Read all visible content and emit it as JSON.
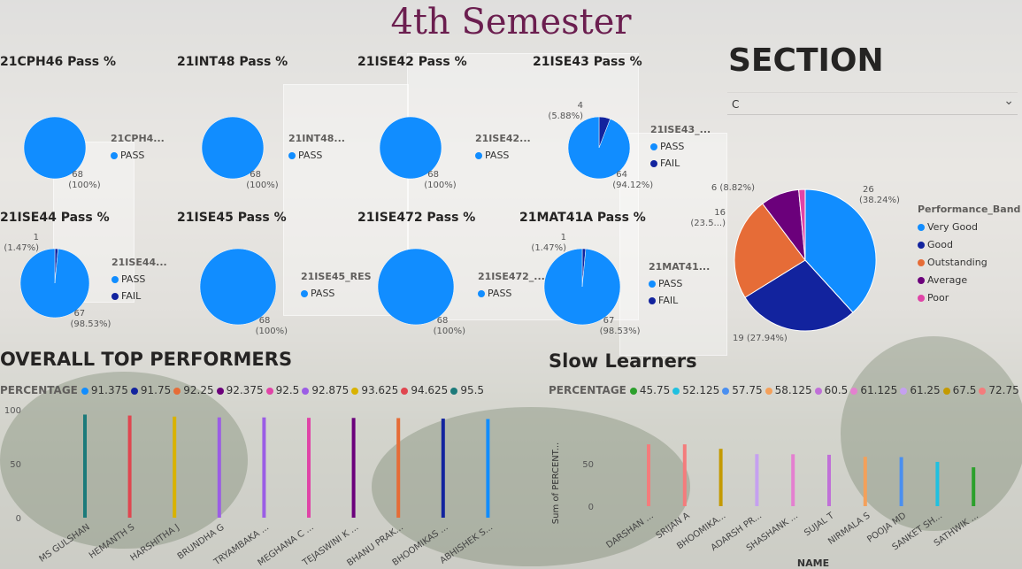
{
  "page": {
    "title": "4th Semester"
  },
  "section_slicer": {
    "title": "SECTION",
    "selected": "C"
  },
  "colors": {
    "pass": "#118dff",
    "fail": "#12239e"
  },
  "chart_data": [
    {
      "type": "pie",
      "title": "21CPH46 Pass %",
      "legend_title": "21CPH4...",
      "slices": [
        {
          "label": "PASS",
          "value": 68,
          "pct": "100%"
        }
      ]
    },
    {
      "type": "pie",
      "title": "21INT48 Pass %",
      "legend_title": "21INT48...",
      "slices": [
        {
          "label": "PASS",
          "value": 68,
          "pct": "100%"
        }
      ]
    },
    {
      "type": "pie",
      "title": "21ISE42 Pass %",
      "legend_title": "21ISE42...",
      "slices": [
        {
          "label": "PASS",
          "value": 68,
          "pct": "100%"
        }
      ]
    },
    {
      "type": "pie",
      "title": "21ISE43 Pass %",
      "legend_title": "21ISE43_...",
      "slices": [
        {
          "label": "PASS",
          "value": 64,
          "pct": "94.12%"
        },
        {
          "label": "FAIL",
          "value": 4,
          "pct": "5.88%"
        }
      ]
    },
    {
      "type": "pie",
      "title": "21ISE44 Pass %",
      "legend_title": "21ISE44...",
      "slices": [
        {
          "label": "PASS",
          "value": 67,
          "pct": "98.53%"
        },
        {
          "label": "FAIL",
          "value": 1,
          "pct": "1.47%"
        }
      ]
    },
    {
      "type": "pie",
      "title": "21ISE45 Pass %",
      "legend_title": "21ISE45_RES",
      "slices": [
        {
          "label": "PASS",
          "value": 68,
          "pct": "100%"
        }
      ]
    },
    {
      "type": "pie",
      "title": "21ISE472 Pass %",
      "legend_title": "21ISE472_...",
      "slices": [
        {
          "label": "PASS",
          "value": 68,
          "pct": "100%"
        }
      ]
    },
    {
      "type": "pie",
      "title": "21MAT41A Pass %",
      "legend_title": "21MAT41...",
      "slices": [
        {
          "label": "PASS",
          "value": 67,
          "pct": "98.53%"
        },
        {
          "label": "FAIL",
          "value": 1,
          "pct": "1.47%"
        }
      ]
    },
    {
      "type": "pie",
      "title": "",
      "legend_title": "Performance_Band",
      "slices": [
        {
          "label": "Very Good",
          "value": 26,
          "pct": "38.24%",
          "color": "#118dff"
        },
        {
          "label": "Good",
          "value": 19,
          "pct": "27.94%",
          "color": "#12239e"
        },
        {
          "label": "Outstanding",
          "value": 16,
          "pct": "23.5...",
          "color": "#e66c37"
        },
        {
          "label": "Average",
          "value": 6,
          "pct": "8.82%",
          "color": "#6b007b"
        },
        {
          "label": "Poor",
          "value": 1,
          "pct": "",
          "color": "#e044a7"
        }
      ]
    },
    {
      "type": "bar",
      "title": "OVERALL TOP PERFORMERS",
      "legend_title": "PERCENTAGE",
      "ylim": [
        0,
        100
      ],
      "yticks": [
        0,
        50,
        100
      ],
      "categories": [
        "MS GULSHAN",
        "HEMANTH S",
        "HARSHITHA J",
        "BRUNDHA G",
        "TRYAMBAKA ...",
        "MEGHANA C ...",
        "TEJASWINI K ...",
        "BHANU PRAK...",
        "BHOOMIKAS ...",
        "ABHISHEK S..."
      ],
      "values": [
        95.5,
        94.625,
        93.625,
        92.875,
        92.875,
        92.5,
        92.375,
        92.25,
        91.75,
        91.375
      ],
      "bar_colors": [
        "#1c7a7a",
        "#e0464f",
        "#d9b200",
        "#9b5de5",
        "#9b5de5",
        "#e044a7",
        "#6b007b",
        "#e66c37",
        "#12239e",
        "#118dff"
      ],
      "legend": [
        {
          "label": "91.375",
          "color": "#118dff"
        },
        {
          "label": "91.75",
          "color": "#12239e"
        },
        {
          "label": "92.25",
          "color": "#e66c37"
        },
        {
          "label": "92.375",
          "color": "#6b007b"
        },
        {
          "label": "92.5",
          "color": "#e044a7"
        },
        {
          "label": "92.875",
          "color": "#9b5de5"
        },
        {
          "label": "93.625",
          "color": "#d9b200"
        },
        {
          "label": "94.625",
          "color": "#e0464f"
        },
        {
          "label": "95.5",
          "color": "#1c7a7a"
        }
      ]
    },
    {
      "type": "bar",
      "title": "Slow Learners",
      "legend_title": "PERCENTAGE",
      "xlabel": "NAME",
      "ylabel": "Sum of PERCENT...",
      "ylim": [
        0,
        75
      ],
      "yticks": [
        0,
        50
      ],
      "categories": [
        "DARSHAN ...",
        "SRIJAN A",
        "BHOOMIKA...",
        "ADARSH PR...",
        "SHASHANK ...",
        "SUJAL T",
        "NIRMALA S",
        "POOJA MD",
        "SANKET SH...",
        "SATHWIK ..."
      ],
      "values": [
        72.75,
        72.75,
        67.5,
        61.25,
        61.125,
        60.5,
        58.125,
        57.75,
        52.125,
        45.75
      ],
      "bar_colors": [
        "#f47c7c",
        "#f47c7c",
        "#c49a00",
        "#c5a0f0",
        "#e480d0",
        "#c070d8",
        "#f4a05a",
        "#4a8ff0",
        "#20c0e0",
        "#2ca02c"
      ],
      "legend": [
        {
          "label": "45.75",
          "color": "#2ca02c"
        },
        {
          "label": "52.125",
          "color": "#20c0e0"
        },
        {
          "label": "57.75",
          "color": "#4a8ff0"
        },
        {
          "label": "58.125",
          "color": "#f4a05a"
        },
        {
          "label": "60.5",
          "color": "#c070d8"
        },
        {
          "label": "61.125",
          "color": "#e480d0"
        },
        {
          "label": "61.25",
          "color": "#c5a0f0"
        },
        {
          "label": "67.5",
          "color": "#c49a00"
        },
        {
          "label": "72.75",
          "color": "#f47c7c"
        }
      ]
    }
  ]
}
